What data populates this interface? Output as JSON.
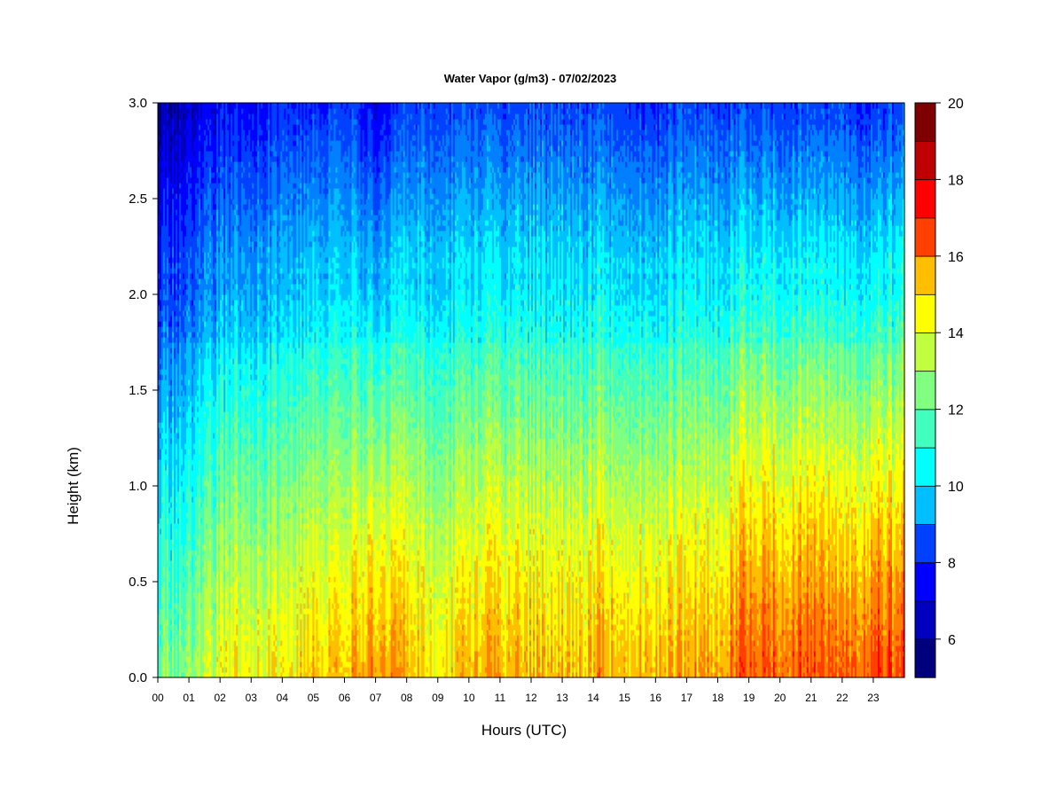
{
  "chart_data": {
    "type": "heatmap",
    "title": "Water Vapor (g/m3) - 07/02/2023",
    "xlabel": "Hours (UTC)",
    "ylabel": "Height (km)",
    "xlim": [
      0,
      24
    ],
    "ylim": [
      0.0,
      3.0
    ],
    "x_ticks": [
      "00",
      "01",
      "02",
      "03",
      "04",
      "05",
      "06",
      "07",
      "08",
      "09",
      "10",
      "11",
      "12",
      "13",
      "14",
      "15",
      "16",
      "17",
      "18",
      "19",
      "20",
      "21",
      "22",
      "23"
    ],
    "y_ticks": [
      "0.0",
      "0.5",
      "1.0",
      "1.5",
      "2.0",
      "2.5",
      "3.0"
    ],
    "colorbar": {
      "min": 5,
      "max": 20,
      "step": 1,
      "labels": [
        "6",
        "8",
        "10",
        "12",
        "14",
        "16",
        "18",
        "20"
      ],
      "colors": [
        "#00007f",
        "#0000bf",
        "#0000ff",
        "#0040ff",
        "#0080ff",
        "#00bfff",
        "#00ffff",
        "#40ffbf",
        "#80ff80",
        "#bfff40",
        "#ffff00",
        "#ffbf00",
        "#ff8000",
        "#ff4000",
        "#ff0000",
        "#bf0000",
        "#7f0000"
      ]
    },
    "hours": [
      0,
      1,
      2,
      3,
      4,
      5,
      6,
      7,
      8,
      9,
      10,
      11,
      12,
      13,
      14,
      15,
      16,
      17,
      18,
      19,
      20,
      21,
      22,
      23,
      24
    ],
    "heights_km": [
      0.0,
      0.25,
      0.5,
      0.75,
      1.0,
      1.25,
      1.5,
      1.75,
      2.0,
      2.25,
      2.5,
      2.75,
      3.0
    ],
    "surface_gm3": [
      13.5,
      13.5,
      15.2,
      15.5,
      15.5,
      16.3,
      16.5,
      17.2,
      16.8,
      15.8,
      16.5,
      16.8,
      16.5,
      16.5,
      16.8,
      16.8,
      16.5,
      16.8,
      17.0,
      18.5,
      18.3,
      18.5,
      18.0,
      18.5,
      18.3
    ],
    "top_gm3": [
      6.0,
      6.5,
      7.5,
      7.5,
      8.0,
      8.0,
      8.5,
      7.0,
      8.5,
      8.5,
      8.5,
      8.5,
      8.5,
      8.5,
      8.5,
      8.5,
      8.0,
      8.5,
      8.5,
      8.5,
      8.5,
      8.5,
      8.5,
      8.0,
      8.5
    ]
  }
}
